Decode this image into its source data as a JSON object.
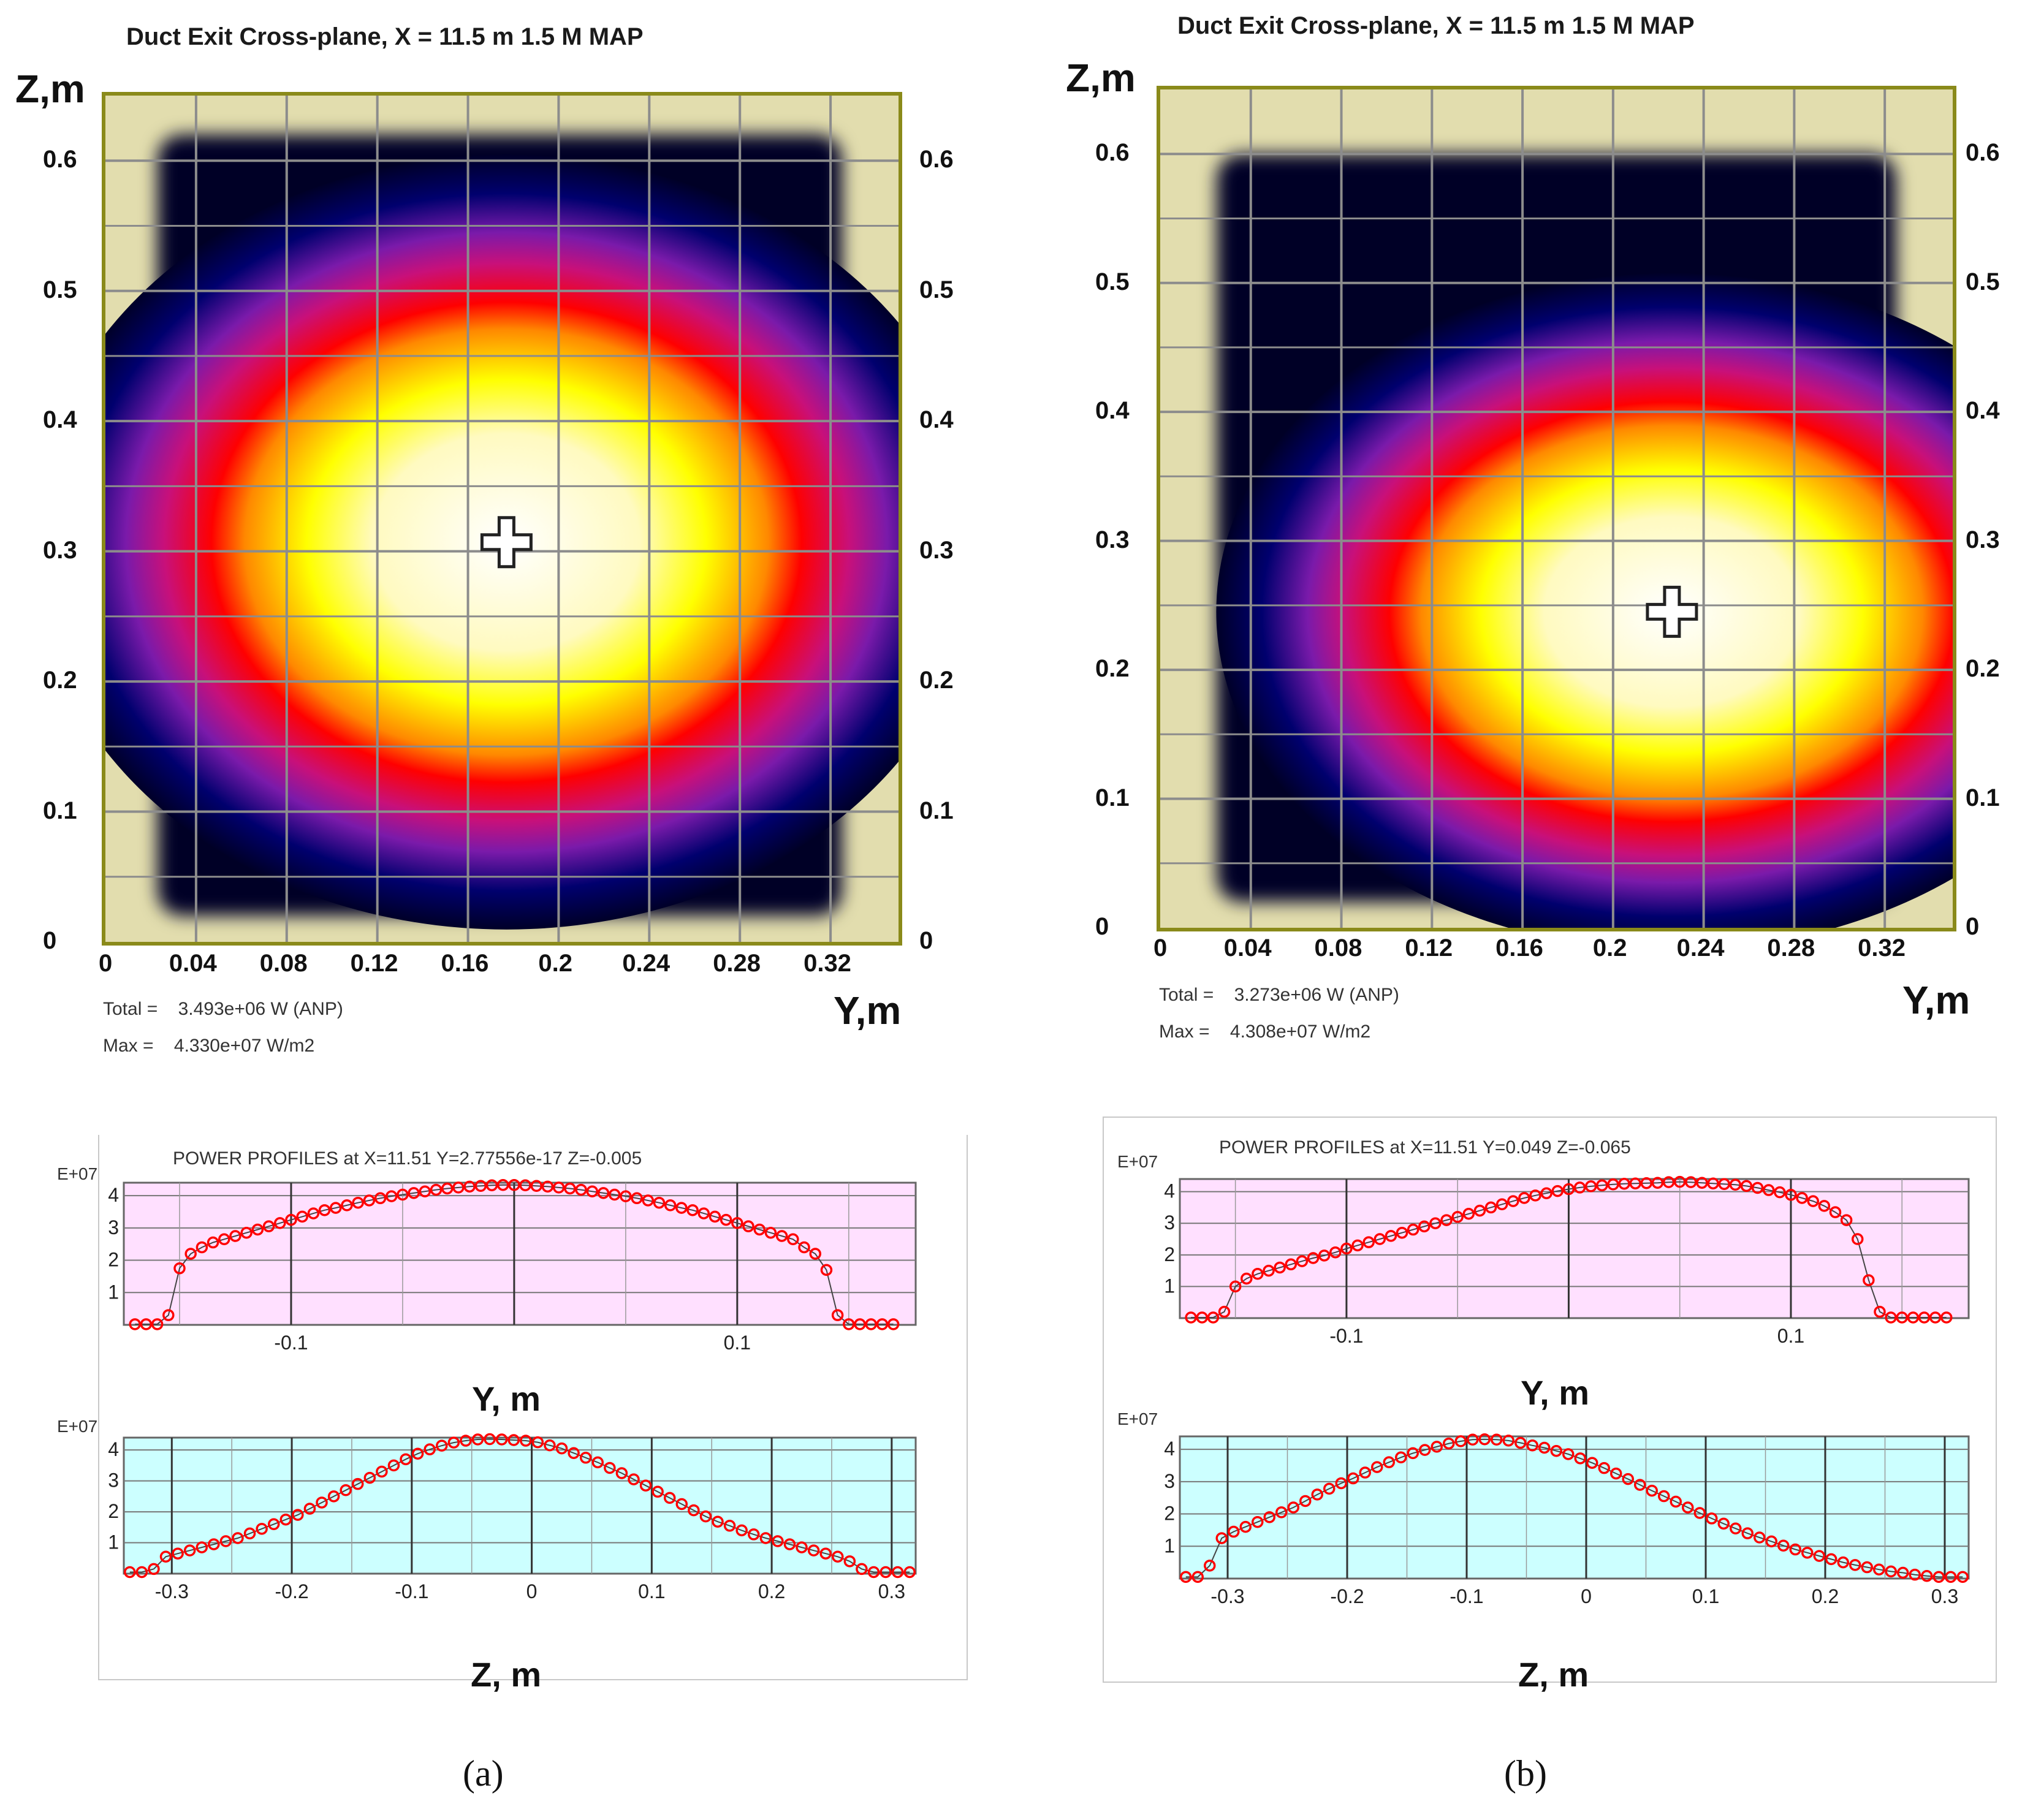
{
  "colors": {
    "map_background": "#e2ddae",
    "map_border": "#8a8a1a",
    "grid": "#8c8c8c",
    "y_profile_bg": "#ffe0ff",
    "z_profile_bg": "#ccffff",
    "marker": "#ff0000",
    "palette": [
      "#000028",
      "#00006e",
      "#7a1aaa",
      "#ff0000",
      "#ffff00",
      "#ffffff"
    ]
  },
  "panels": [
    {
      "id": "a",
      "caption": "(a)",
      "map": {
        "title": "Duct Exit Cross-plane, X = 11.5 m 1.5 M  MAP",
        "z_label": "Z,m",
        "y_label": "Y,m",
        "y_ticks": [
          "0",
          "0.04",
          "0.08",
          "0.12",
          "0.16",
          "0.2",
          "0.24",
          "0.28",
          "0.32"
        ],
        "z_ticks": [
          "0",
          "0.1",
          "0.2",
          "0.3",
          "0.4",
          "0.5",
          "0.6"
        ],
        "total_label": "Total = ",
        "total_value": "3.493e+06 W (ANP)",
        "max_label": "Max = ",
        "max_value": "4.330e+07 W/m2",
        "cross_marker": {
          "y": 0.177,
          "z": 0.307
        }
      },
      "profiles_title": "POWER PROFILES  at  X=11.51  Y=2.77556e-17  Z=-0.005",
      "y_profile": {
        "exponent_label": "E+07",
        "axis_label": "Y, m",
        "x_ticks": [
          "-0.1",
          "0.1"
        ],
        "y_ticks": [
          "1",
          "2",
          "3",
          "4"
        ]
      },
      "z_profile": {
        "exponent_label": "E+07",
        "axis_label": "Z, m",
        "x_ticks": [
          "-0.3",
          "-0.2",
          "-0.1",
          "0",
          "0.1",
          "0.2",
          "0.3"
        ],
        "y_ticks": [
          "1",
          "2",
          "3",
          "4"
        ]
      }
    },
    {
      "id": "b",
      "caption": "(b)",
      "map": {
        "title": "Duct Exit Cross-plane, X = 11.5 m 1.5 M  MAP",
        "z_label": "Z,m",
        "y_label": "Y,m",
        "y_ticks": [
          "0",
          "0.04",
          "0.08",
          "0.12",
          "0.16",
          "0.2",
          "0.24",
          "0.28",
          "0.32"
        ],
        "z_ticks": [
          "0",
          "0.1",
          "0.2",
          "0.3",
          "0.4",
          "0.5",
          "0.6"
        ],
        "total_label": "Total = ",
        "total_value": "3.273e+06 W (ANP)",
        "max_label": "Max = ",
        "max_value": "4.308e+07 W/m2",
        "cross_marker": {
          "y": 0.226,
          "z": 0.245
        }
      },
      "profiles_title": "POWER PROFILES  at  X=11.51  Y=0.049  Z=-0.065",
      "y_profile": {
        "exponent_label": "E+07",
        "axis_label": "Y, m",
        "x_ticks": [
          "-0.1",
          "0.1"
        ],
        "y_ticks": [
          "1",
          "2",
          "3",
          "4"
        ]
      },
      "z_profile": {
        "exponent_label": "E+07",
        "axis_label": "Z, m",
        "x_ticks": [
          "-0.3",
          "-0.2",
          "-0.1",
          "0",
          "0.1",
          "0.2",
          "0.3"
        ],
        "y_ticks": [
          "1",
          "2",
          "3",
          "4"
        ]
      }
    }
  ],
  "chart_data": [
    {
      "type": "heatmap",
      "panel": "a",
      "title": "Duct Exit Cross-plane, X = 11.5 m 1.5 M  MAP",
      "xlabel": "Y,m",
      "ylabel": "Z,m",
      "xlim": [
        0,
        0.35
      ],
      "ylim": [
        0,
        0.65
      ],
      "units": "W/m2",
      "max": 43300000.0,
      "total": "3.493e+06 W (ANP)",
      "peak": {
        "y": 0.177,
        "z": 0.307
      },
      "spread": {
        "y": 0.12,
        "z": 0.17
      },
      "beam_region": {
        "y": [
          0.023,
          0.325
        ],
        "z": [
          0.02,
          0.62
        ]
      }
    },
    {
      "type": "heatmap",
      "panel": "b",
      "title": "Duct Exit Cross-plane, X = 11.5 m 1.5 M  MAP",
      "xlabel": "Y,m",
      "ylabel": "Z,m",
      "xlim": [
        0,
        0.35
      ],
      "ylim": [
        0,
        0.65
      ],
      "units": "W/m2",
      "max": 43080000.0,
      "total": "3.273e+06 W (ANP)",
      "peak": {
        "y": 0.226,
        "z": 0.245
      },
      "spread": {
        "y": 0.115,
        "z": 0.15
      },
      "beam_region": {
        "y": [
          0.025,
          0.325
        ],
        "z": [
          0.02,
          0.6
        ]
      }
    },
    {
      "type": "line",
      "panel": "a",
      "role": "y_profile",
      "title": "POWER PROFILES  at  X=11.51  Y=2.77556e-17  Z=-0.005",
      "xlabel": "Y, m",
      "ylabel": "E+07",
      "xlim": [
        -0.175,
        0.18
      ],
      "ylim": [
        0,
        4.4
      ],
      "x": [
        -0.17,
        -0.165,
        -0.16,
        -0.155,
        -0.15,
        -0.145,
        -0.14,
        -0.135,
        -0.13,
        -0.125,
        -0.12,
        -0.115,
        -0.11,
        -0.105,
        -0.1,
        -0.095,
        -0.09,
        -0.085,
        -0.08,
        -0.075,
        -0.07,
        -0.065,
        -0.06,
        -0.055,
        -0.05,
        -0.045,
        -0.04,
        -0.035,
        -0.03,
        -0.025,
        -0.02,
        -0.015,
        -0.01,
        -0.005,
        0,
        0.005,
        0.01,
        0.015,
        0.02,
        0.025,
        0.03,
        0.035,
        0.04,
        0.045,
        0.05,
        0.055,
        0.06,
        0.065,
        0.07,
        0.075,
        0.08,
        0.085,
        0.09,
        0.095,
        0.1,
        0.105,
        0.11,
        0.115,
        0.12,
        0.125,
        0.13,
        0.135,
        0.14,
        0.145,
        0.15,
        0.155,
        0.16,
        0.165,
        0.17
      ],
      "values": [
        0.02,
        0.02,
        0.02,
        0.3,
        1.75,
        2.2,
        2.4,
        2.55,
        2.65,
        2.75,
        2.85,
        2.95,
        3.05,
        3.15,
        3.25,
        3.35,
        3.45,
        3.55,
        3.62,
        3.7,
        3.78,
        3.85,
        3.92,
        3.98,
        4.03,
        4.08,
        4.13,
        4.18,
        4.22,
        4.25,
        4.28,
        4.3,
        4.32,
        4.33,
        4.33,
        4.32,
        4.3,
        4.28,
        4.25,
        4.22,
        4.18,
        4.13,
        4.08,
        4.03,
        3.98,
        3.92,
        3.85,
        3.78,
        3.7,
        3.62,
        3.55,
        3.45,
        3.35,
        3.25,
        3.15,
        3.05,
        2.95,
        2.85,
        2.75,
        2.65,
        2.4,
        2.2,
        1.7,
        0.3,
        0.02,
        0.02,
        0.02,
        0.02,
        0.02
      ]
    },
    {
      "type": "line",
      "panel": "a",
      "role": "z_profile",
      "xlabel": "Z, m",
      "ylabel": "E+07",
      "xlim": [
        -0.34,
        0.32
      ],
      "ylim": [
        0,
        4.4
      ],
      "x": [
        -0.335,
        -0.325,
        -0.315,
        -0.305,
        -0.295,
        -0.285,
        -0.275,
        -0.265,
        -0.255,
        -0.245,
        -0.235,
        -0.225,
        -0.215,
        -0.205,
        -0.195,
        -0.185,
        -0.175,
        -0.165,
        -0.155,
        -0.145,
        -0.135,
        -0.125,
        -0.115,
        -0.105,
        -0.095,
        -0.085,
        -0.075,
        -0.065,
        -0.055,
        -0.045,
        -0.035,
        -0.025,
        -0.015,
        -0.005,
        0.005,
        0.015,
        0.025,
        0.035,
        0.045,
        0.055,
        0.065,
        0.075,
        0.085,
        0.095,
        0.105,
        0.115,
        0.125,
        0.135,
        0.145,
        0.155,
        0.165,
        0.175,
        0.185,
        0.195,
        0.205,
        0.215,
        0.225,
        0.235,
        0.245,
        0.255,
        0.265,
        0.275,
        0.285,
        0.295,
        0.305,
        0.315
      ],
      "values": [
        0.05,
        0.05,
        0.15,
        0.55,
        0.65,
        0.75,
        0.85,
        0.95,
        1.05,
        1.15,
        1.3,
        1.45,
        1.6,
        1.75,
        1.9,
        2.1,
        2.3,
        2.5,
        2.7,
        2.9,
        3.1,
        3.3,
        3.5,
        3.7,
        3.88,
        4.02,
        4.14,
        4.24,
        4.3,
        4.34,
        4.35,
        4.34,
        4.32,
        4.3,
        4.25,
        4.15,
        4.05,
        3.9,
        3.75,
        3.6,
        3.42,
        3.25,
        3.05,
        2.85,
        2.65,
        2.45,
        2.25,
        2.05,
        1.85,
        1.68,
        1.55,
        1.4,
        1.27,
        1.15,
        1.05,
        0.95,
        0.85,
        0.75,
        0.65,
        0.55,
        0.4,
        0.15,
        0.05,
        0.05,
        0.05,
        0.05
      ]
    },
    {
      "type": "line",
      "panel": "b",
      "role": "y_profile",
      "title": "POWER PROFILES  at  X=11.51  Y=0.049  Z=-0.065",
      "xlabel": "Y, m",
      "ylabel": "E+07",
      "xlim": [
        -0.175,
        0.18
      ],
      "ylim": [
        0,
        4.4
      ],
      "x": [
        -0.17,
        -0.165,
        -0.16,
        -0.155,
        -0.15,
        -0.145,
        -0.14,
        -0.135,
        -0.13,
        -0.125,
        -0.12,
        -0.115,
        -0.11,
        -0.105,
        -0.1,
        -0.095,
        -0.09,
        -0.085,
        -0.08,
        -0.075,
        -0.07,
        -0.065,
        -0.06,
        -0.055,
        -0.05,
        -0.045,
        -0.04,
        -0.035,
        -0.03,
        -0.025,
        -0.02,
        -0.015,
        -0.01,
        -0.005,
        0,
        0.005,
        0.01,
        0.015,
        0.02,
        0.025,
        0.03,
        0.035,
        0.04,
        0.045,
        0.05,
        0.055,
        0.06,
        0.065,
        0.07,
        0.075,
        0.08,
        0.085,
        0.09,
        0.095,
        0.1,
        0.105,
        0.11,
        0.115,
        0.12,
        0.125,
        0.13,
        0.135,
        0.14,
        0.145,
        0.15,
        0.155,
        0.16,
        0.165,
        0.17
      ],
      "values": [
        0.02,
        0.02,
        0.02,
        0.2,
        1.0,
        1.25,
        1.4,
        1.5,
        1.6,
        1.7,
        1.8,
        1.9,
        1.98,
        2.08,
        2.2,
        2.3,
        2.4,
        2.5,
        2.6,
        2.7,
        2.8,
        2.9,
        3.0,
        3.1,
        3.2,
        3.3,
        3.4,
        3.5,
        3.6,
        3.7,
        3.8,
        3.88,
        3.95,
        4.02,
        4.08,
        4.13,
        4.17,
        4.2,
        4.23,
        4.25,
        4.26,
        4.27,
        4.28,
        4.3,
        4.31,
        4.3,
        4.28,
        4.26,
        4.24,
        4.22,
        4.18,
        4.12,
        4.05,
        3.98,
        3.9,
        3.8,
        3.7,
        3.55,
        3.35,
        3.1,
        2.5,
        1.2,
        0.2,
        0.02,
        0.02,
        0.02,
        0.02,
        0.02,
        0.02
      ]
    },
    {
      "type": "line",
      "panel": "b",
      "role": "z_profile",
      "xlabel": "Z, m",
      "ylabel": "E+07",
      "xlim": [
        -0.34,
        0.32
      ],
      "ylim": [
        0,
        4.4
      ],
      "x": [
        -0.335,
        -0.325,
        -0.315,
        -0.305,
        -0.295,
        -0.285,
        -0.275,
        -0.265,
        -0.255,
        -0.245,
        -0.235,
        -0.225,
        -0.215,
        -0.205,
        -0.195,
        -0.185,
        -0.175,
        -0.165,
        -0.155,
        -0.145,
        -0.135,
        -0.125,
        -0.115,
        -0.105,
        -0.095,
        -0.085,
        -0.075,
        -0.065,
        -0.055,
        -0.045,
        -0.035,
        -0.025,
        -0.015,
        -0.005,
        0.005,
        0.015,
        0.025,
        0.035,
        0.045,
        0.055,
        0.065,
        0.075,
        0.085,
        0.095,
        0.105,
        0.115,
        0.125,
        0.135,
        0.145,
        0.155,
        0.165,
        0.175,
        0.185,
        0.195,
        0.205,
        0.215,
        0.225,
        0.235,
        0.245,
        0.255,
        0.265,
        0.275,
        0.285,
        0.295,
        0.305,
        0.315
      ],
      "values": [
        0.05,
        0.05,
        0.4,
        1.25,
        1.45,
        1.6,
        1.75,
        1.9,
        2.05,
        2.2,
        2.4,
        2.6,
        2.78,
        2.95,
        3.1,
        3.28,
        3.45,
        3.6,
        3.75,
        3.88,
        3.98,
        4.08,
        4.18,
        4.25,
        4.3,
        4.31,
        4.3,
        4.27,
        4.2,
        4.12,
        4.05,
        3.95,
        3.85,
        3.72,
        3.58,
        3.42,
        3.25,
        3.08,
        2.9,
        2.72,
        2.55,
        2.38,
        2.2,
        2.03,
        1.86,
        1.7,
        1.55,
        1.4,
        1.27,
        1.15,
        1.02,
        0.9,
        0.8,
        0.7,
        0.6,
        0.5,
        0.42,
        0.35,
        0.28,
        0.22,
        0.18,
        0.12,
        0.08,
        0.05,
        0.05,
        0.05
      ]
    }
  ]
}
